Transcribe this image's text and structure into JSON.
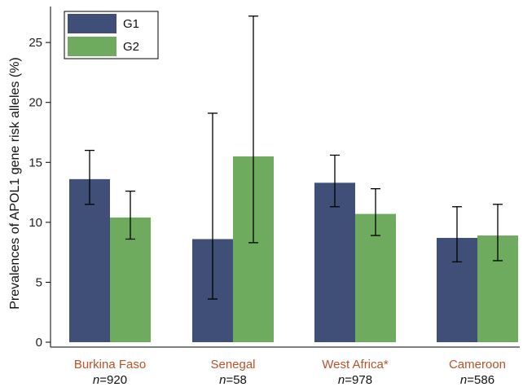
{
  "chart_data": {
    "type": "bar",
    "ylabel": "Prevalences of APOL1 gene risk alleles (%)",
    "ylim": [
      0,
      28
    ],
    "yticks": [
      0,
      5,
      10,
      15,
      20,
      25
    ],
    "grid": false,
    "legend_position": "top-left",
    "categories": [
      "Burkina Faso",
      "Senegal",
      "West Africa*",
      "Cameroon"
    ],
    "n_prefix": "n",
    "n_values": [
      "=920",
      "=58",
      "=978",
      "=586"
    ],
    "category_label_color": "#b5532a",
    "series": [
      {
        "name": "G1",
        "color": "#3f4f78",
        "values": [
          13.6,
          8.6,
          13.3,
          8.7
        ],
        "error_low": [
          11.5,
          3.6,
          11.3,
          6.7
        ],
        "error_high": [
          16.0,
          19.1,
          15.6,
          11.3
        ]
      },
      {
        "name": "G2",
        "color": "#6fab5f",
        "values": [
          10.4,
          15.5,
          10.7,
          8.9
        ],
        "error_low": [
          8.6,
          8.3,
          8.9,
          6.8
        ],
        "error_high": [
          12.6,
          27.2,
          12.8,
          11.5
        ]
      }
    ]
  }
}
